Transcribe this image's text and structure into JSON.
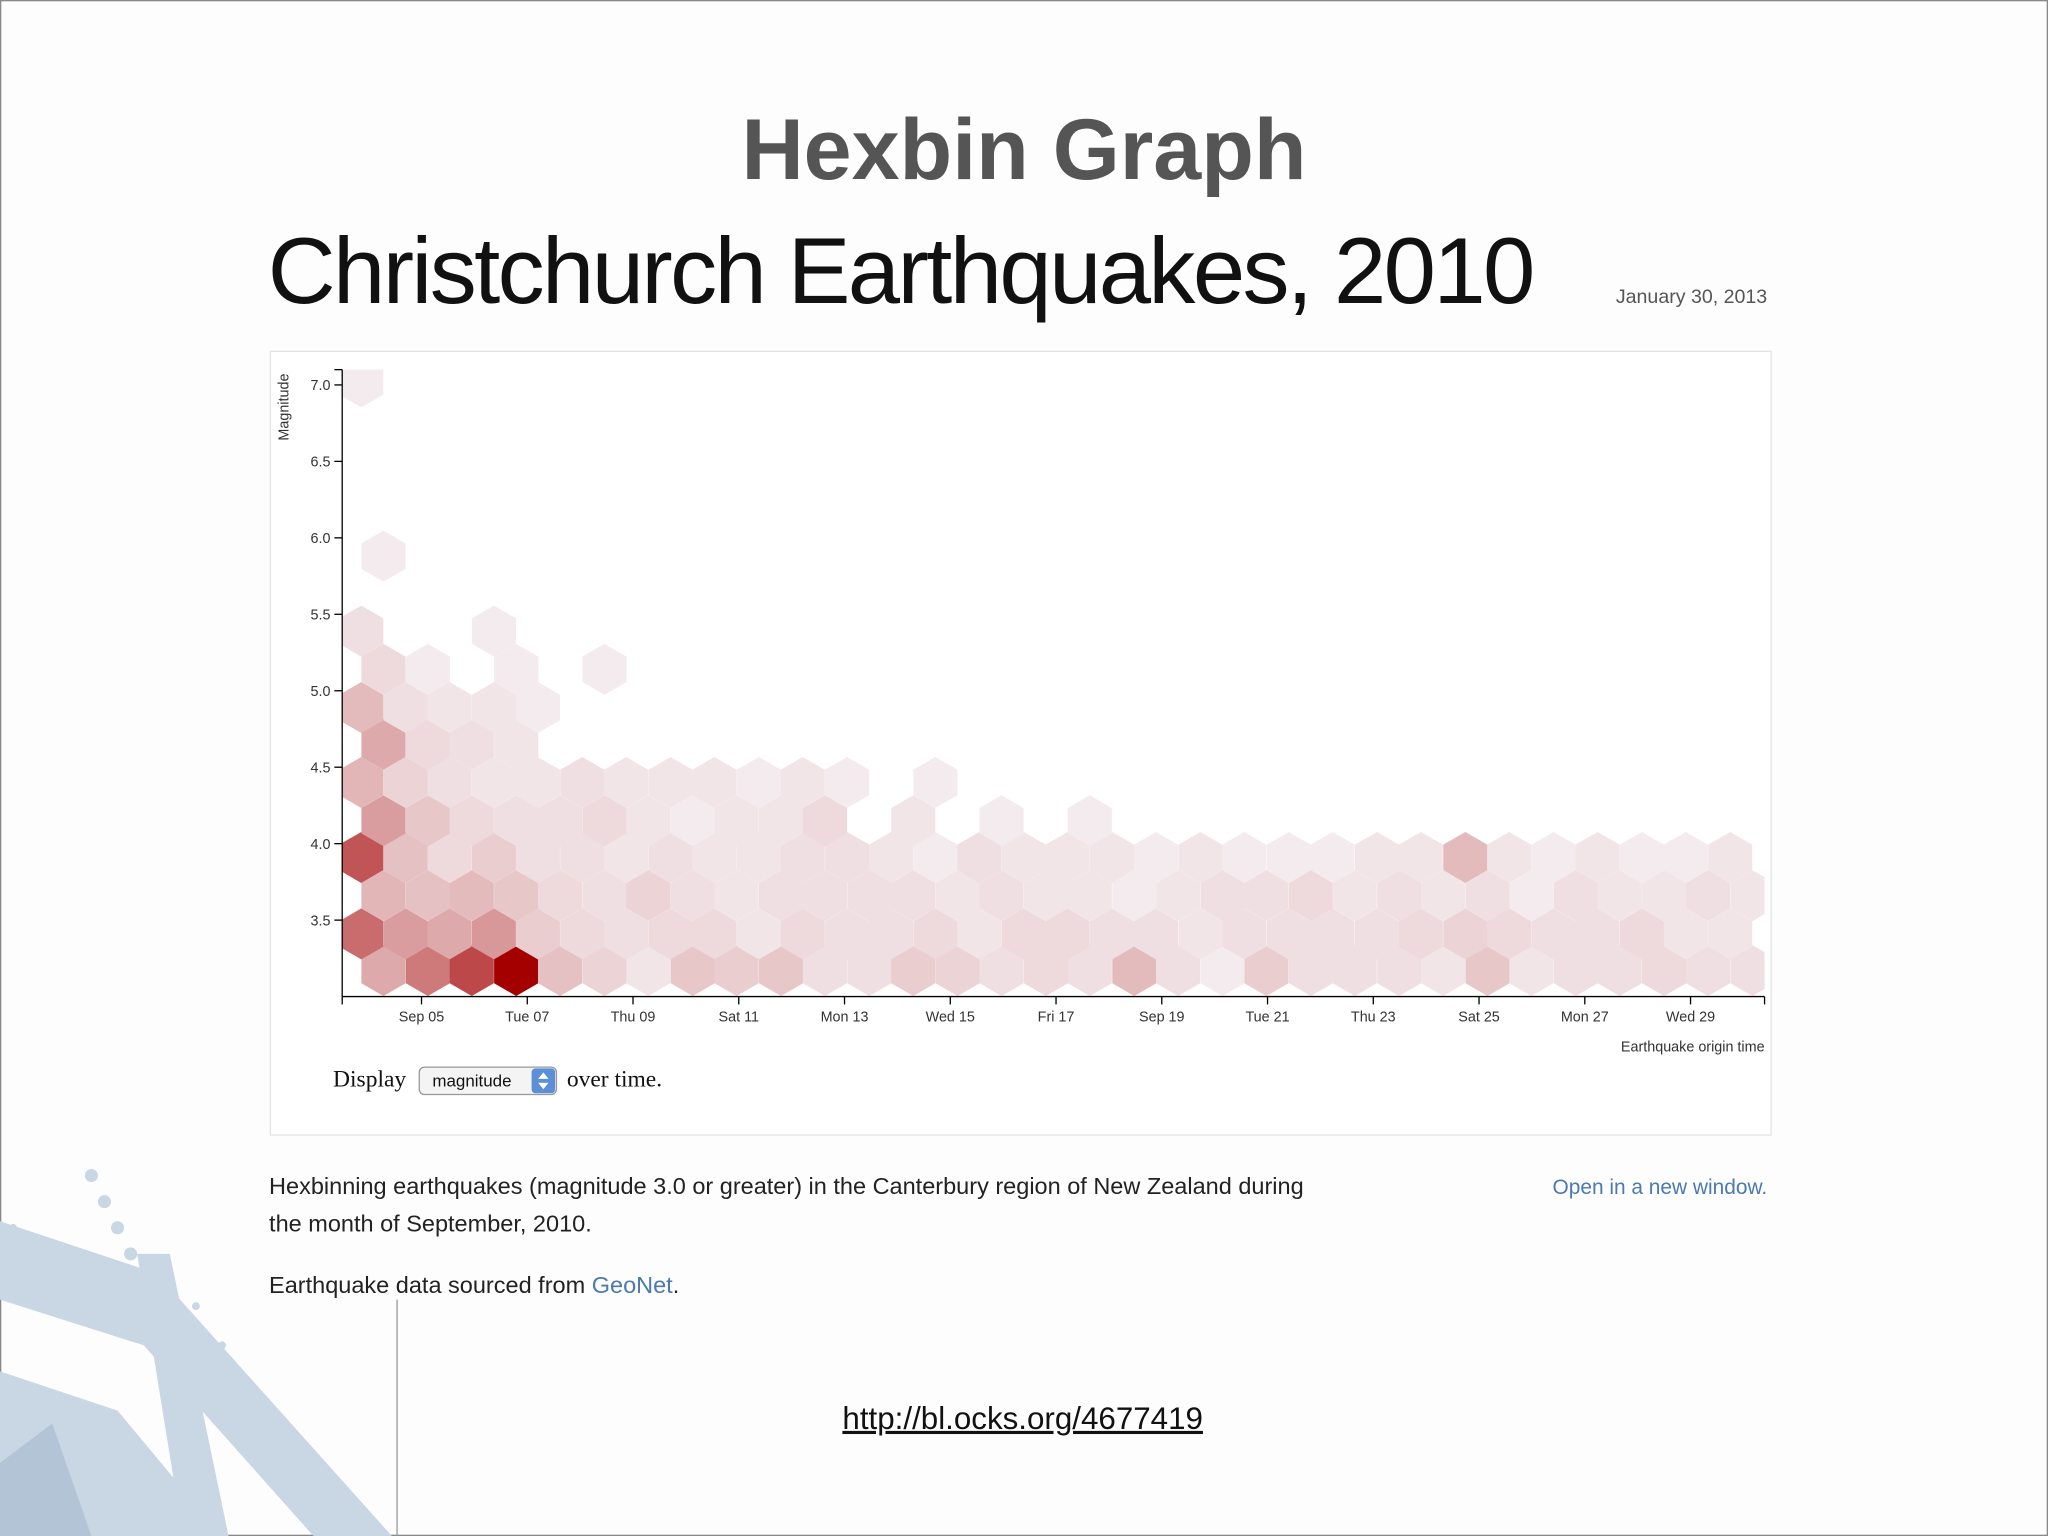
{
  "slide_title": "Hexbin Graph",
  "page": {
    "title": "Christchurch Earthquakes, 2010",
    "date": "January 30, 2013",
    "controls": {
      "before": "Display",
      "select": "magnitude",
      "after": "over time."
    },
    "description": [
      "Hexbinning earthquakes (magnitude 3.0 or greater) in the Canterbury region of New Zealand during",
      "the month of September, 2010."
    ],
    "open_link": "Open in a new window.",
    "source": {
      "text": "Earthquake data sourced from",
      "link": "GeoNet",
      "end": "."
    }
  },
  "url": "http://bl.ocks.org/4677419",
  "chart_data": {
    "type": "hexbin",
    "x_label": "Earthquake origin time",
    "y_label": "Magnitude",
    "xlim": [
      3.5,
      30.4
    ],
    "xticks": [
      {
        "value": 5,
        "label": "Sep 05"
      },
      {
        "value": 7,
        "label": "Tue 07"
      },
      {
        "value": 9,
        "label": "Thu 09"
      },
      {
        "value": 11,
        "label": "Sat 11"
      },
      {
        "value": 13,
        "label": "Mon 13"
      },
      {
        "value": 15,
        "label": "Wed 15"
      },
      {
        "value": 17,
        "label": "Fri 17"
      },
      {
        "value": 19,
        "label": "Sep 19"
      },
      {
        "value": 21,
        "label": "Tue 21"
      },
      {
        "value": 23,
        "label": "Thu 23"
      },
      {
        "value": 25,
        "label": "Sat 25"
      },
      {
        "value": 27,
        "label": "Mon 27"
      },
      {
        "value": 29,
        "label": "Wed 29"
      }
    ],
    "ylim": [
      3.0,
      7.1
    ],
    "yticks": [
      3.5,
      {
        "value": 4,
        "label": "4.0"
      },
      4.5,
      {
        "value": 5,
        "label": "5.0"
      },
      5.5,
      {
        "value": 6,
        "label": "6.0"
      },
      6.5,
      {
        "value": 7,
        "label": "7.0"
      }
    ],
    "color_range": [
      "#f6f1f4",
      "#a50000"
    ],
    "x": [
      4.28,
      5.12,
      5.95,
      6.79,
      7.62,
      8.46,
      9.29,
      10.13,
      10.96,
      11.8,
      12.63,
      13.47,
      14.3,
      15.14,
      15.97,
      16.81,
      17.64,
      18.48,
      19.31,
      20.15,
      20.98,
      21.82,
      22.65,
      23.49,
      24.32,
      25.16,
      25.99,
      26.83,
      27.66,
      28.5,
      29.33,
      30.17,
      3.86,
      4.7,
      5.53,
      6.37,
      7.2,
      8.04,
      8.87,
      9.71,
      10.54,
      11.38,
      12.21,
      13.05,
      13.88,
      14.72,
      15.55,
      16.39,
      17.22,
      18.06,
      18.89,
      19.73,
      20.56,
      21.4,
      22.23,
      23.07,
      23.9,
      24.74,
      25.57,
      26.41,
      27.24,
      28.08,
      28.91,
      29.75,
      4.28,
      5.12,
      5.95,
      6.79,
      7.62,
      8.46,
      9.29,
      10.13,
      10.96,
      11.8,
      12.63,
      13.47,
      14.3,
      15.14,
      15.97,
      16.81,
      17.64,
      18.48,
      19.31,
      20.15,
      20.98,
      21.82,
      22.65,
      23.49,
      24.32,
      25.16,
      25.99,
      26.83,
      27.66,
      28.5,
      29.33,
      30.17,
      3.86,
      4.7,
      5.53,
      6.37,
      7.2,
      8.04,
      8.87,
      9.71,
      10.54,
      11.38,
      12.21,
      13.05,
      13.88,
      14.72,
      15.55,
      16.39,
      17.22,
      18.06,
      18.89,
      19.73,
      20.56,
      21.4,
      22.23,
      23.07,
      23.9,
      24.74,
      25.57,
      26.41,
      27.24,
      28.08,
      28.91,
      29.75,
      4.28,
      5.12,
      5.95,
      6.79,
      7.62,
      8.46,
      9.29,
      10.13,
      10.96,
      11.8,
      12.63,
      14.3,
      15.97,
      17.64,
      3.86,
      4.7,
      5.53,
      6.37,
      7.2,
      8.04,
      8.87,
      9.71,
      10.54,
      11.38,
      12.21,
      13.05,
      14.72,
      4.28,
      5.12,
      5.95,
      6.79,
      3.86,
      4.7,
      5.53,
      6.37,
      7.2,
      4.28,
      5.12,
      6.79,
      8.46,
      3.86,
      6.37,
      4.28,
      3.86
    ],
    "y": [
      3.17,
      3.17,
      3.17,
      3.17,
      3.17,
      3.17,
      3.17,
      3.17,
      3.17,
      3.17,
      3.17,
      3.17,
      3.17,
      3.17,
      3.17,
      3.17,
      3.17,
      3.17,
      3.17,
      3.17,
      3.17,
      3.17,
      3.17,
      3.17,
      3.17,
      3.17,
      3.17,
      3.17,
      3.17,
      3.17,
      3.17,
      3.17,
      3.41,
      3.41,
      3.41,
      3.41,
      3.41,
      3.41,
      3.41,
      3.41,
      3.41,
      3.41,
      3.41,
      3.41,
      3.41,
      3.41,
      3.41,
      3.41,
      3.41,
      3.41,
      3.41,
      3.41,
      3.41,
      3.41,
      3.41,
      3.41,
      3.41,
      3.41,
      3.41,
      3.41,
      3.41,
      3.41,
      3.41,
      3.41,
      3.66,
      3.66,
      3.66,
      3.66,
      3.66,
      3.66,
      3.66,
      3.66,
      3.66,
      3.66,
      3.66,
      3.66,
      3.66,
      3.66,
      3.66,
      3.66,
      3.66,
      3.66,
      3.66,
      3.66,
      3.66,
      3.66,
      3.66,
      3.66,
      3.66,
      3.66,
      3.66,
      3.66,
      3.66,
      3.66,
      3.66,
      3.66,
      3.91,
      3.91,
      3.91,
      3.91,
      3.91,
      3.91,
      3.91,
      3.91,
      3.91,
      3.91,
      3.91,
      3.91,
      3.91,
      3.91,
      3.91,
      3.91,
      3.91,
      3.91,
      3.91,
      3.91,
      3.91,
      3.91,
      3.91,
      3.91,
      3.91,
      3.91,
      3.91,
      3.91,
      3.91,
      3.91,
      3.91,
      3.91,
      4.15,
      4.15,
      4.15,
      4.15,
      4.15,
      4.15,
      4.15,
      4.15,
      4.15,
      4.15,
      4.15,
      4.15,
      4.15,
      4.15,
      4.4,
      4.4,
      4.4,
      4.4,
      4.4,
      4.4,
      4.4,
      4.4,
      4.4,
      4.4,
      4.4,
      4.4,
      4.4,
      4.65,
      4.65,
      4.65,
      4.65,
      4.89,
      4.89,
      4.89,
      4.89,
      4.89,
      5.14,
      5.14,
      5.14,
      5.14,
      5.39,
      5.39,
      5.88,
      7.02
    ],
    "values": [
      12,
      20,
      28,
      40,
      8,
      5,
      2,
      7,
      6,
      7,
      3,
      3,
      6,
      5,
      3,
      4,
      3,
      9,
      3,
      1,
      6,
      3,
      3,
      3,
      2,
      7,
      2,
      3,
      3,
      4,
      3,
      3,
      22,
      14,
      12,
      15,
      6,
      4,
      3,
      4,
      4,
      2,
      4,
      3,
      3,
      4,
      2,
      4,
      4,
      3,
      3,
      2,
      3,
      3,
      3,
      3,
      4,
      5,
      4,
      3,
      3,
      4,
      2,
      2,
      10,
      8,
      9,
      7,
      4,
      3,
      5,
      3,
      2,
      3,
      3,
      3,
      3,
      2,
      3,
      2,
      2,
      1,
      2,
      3,
      3,
      4,
      2,
      3,
      2,
      3,
      1,
      3,
      2,
      2,
      3,
      2,
      26,
      8,
      4,
      6,
      3,
      3,
      2,
      3,
      2,
      2,
      3,
      3,
      2,
      1,
      3,
      2,
      2,
      2,
      1,
      2,
      1,
      1,
      1,
      2,
      2,
      9,
      2,
      1,
      2,
      1,
      1,
      2,
      14,
      7,
      4,
      3,
      3,
      4,
      2,
      1,
      2,
      2,
      4,
      2,
      1,
      1,
      10,
      5,
      3,
      2,
      2,
      3,
      2,
      2,
      2,
      1,
      2,
      1,
      1,
      12,
      4,
      3,
      2,
      9,
      3,
      2,
      2,
      1,
      4,
      1,
      1,
      1,
      3,
      1,
      1,
      1
    ]
  }
}
